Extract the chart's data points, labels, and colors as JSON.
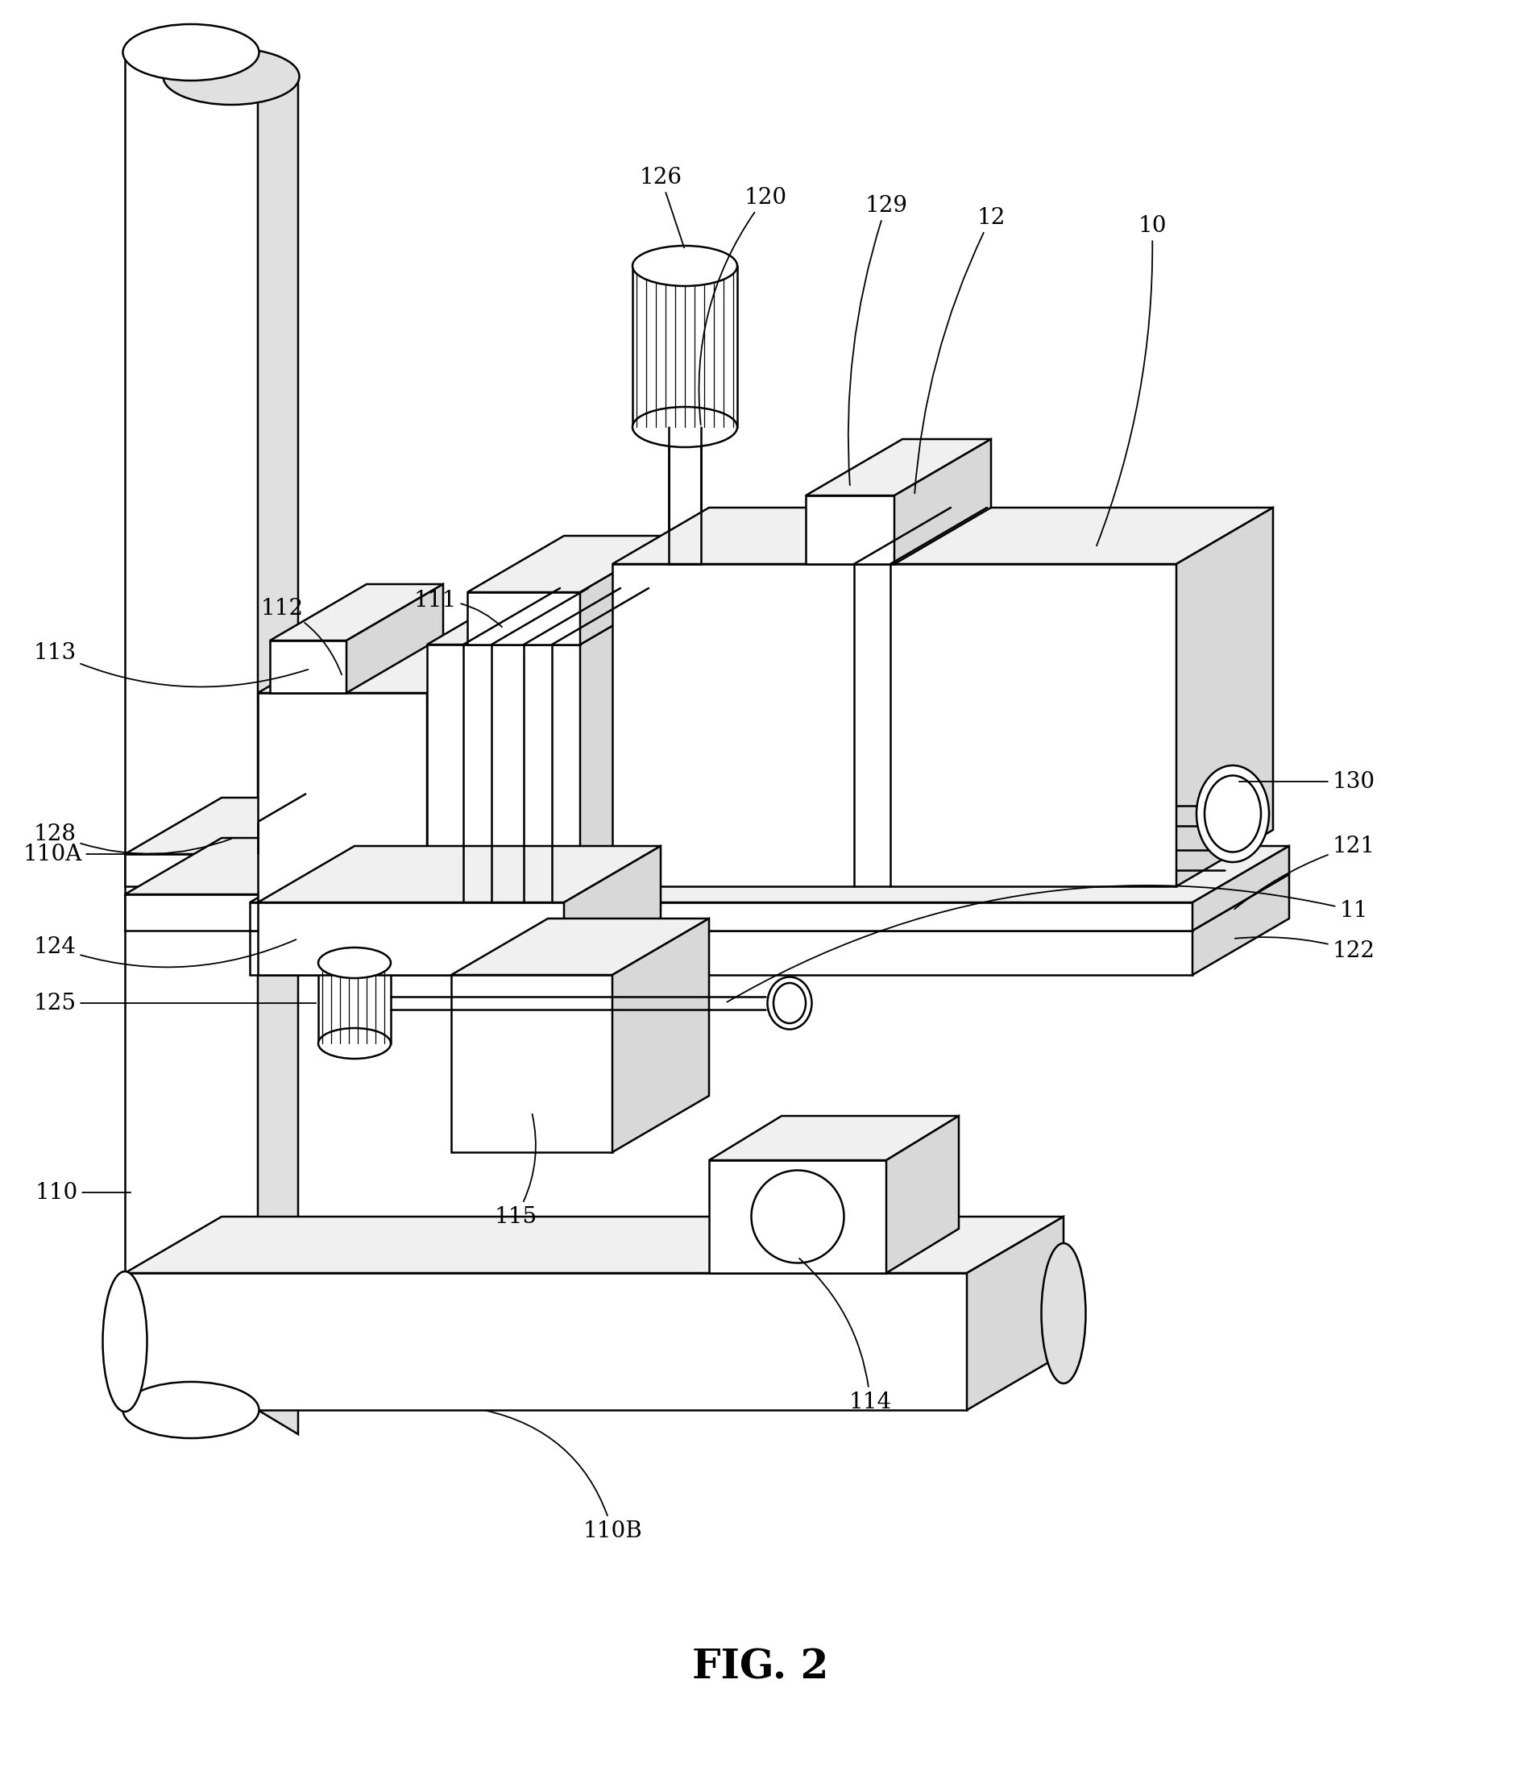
{
  "fig_label": "FIG. 2",
  "bg": "#ffffff",
  "lc": "#000000",
  "lw": 1.8,
  "annot_fs": 20,
  "fig_label_fs": 36
}
